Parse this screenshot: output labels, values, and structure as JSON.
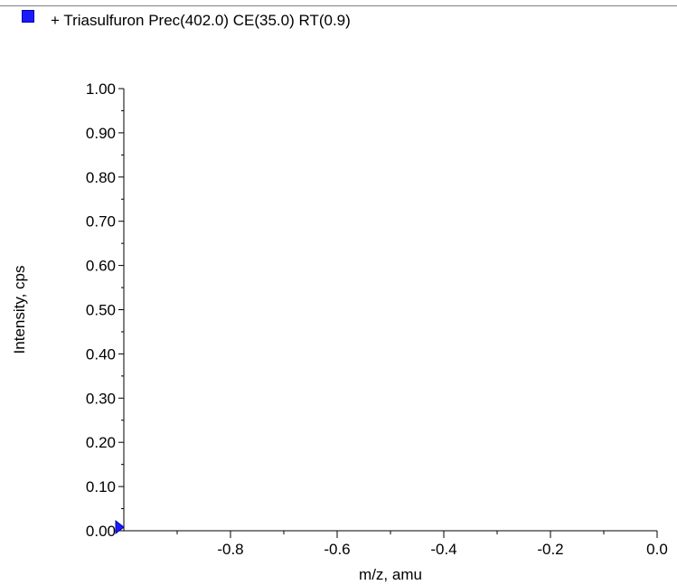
{
  "legend": {
    "label": "+ Triasulfuron Prec(402.0) CE(35.0) RT(0.9)",
    "swatch_color": "#1a1aff"
  },
  "chart_data": {
    "type": "line",
    "title": "",
    "xlabel": "m/z, amu",
    "ylabel": "Intensity, cps",
    "xlim": [
      -1.0,
      0.0
    ],
    "ylim": [
      0.0,
      1.0
    ],
    "x_ticks": [
      -0.8,
      -0.6,
      -0.4,
      -0.2,
      0.0
    ],
    "x_tick_labels": [
      "-0.8",
      "-0.6",
      "-0.4",
      "-0.2",
      "0.0"
    ],
    "y_ticks": [
      0.0,
      0.1,
      0.2,
      0.3,
      0.4,
      0.5,
      0.6,
      0.7,
      0.8,
      0.9,
      1.0
    ],
    "y_tick_labels": [
      "0.00",
      "0.10",
      "0.20",
      "0.30",
      "0.40",
      "0.50",
      "0.60",
      "0.70",
      "0.80",
      "0.90",
      "1.00"
    ],
    "grid": false,
    "series": [],
    "baseline_marker": {
      "x": -1.0,
      "y": 0.0,
      "color": "#1a1aff"
    }
  }
}
